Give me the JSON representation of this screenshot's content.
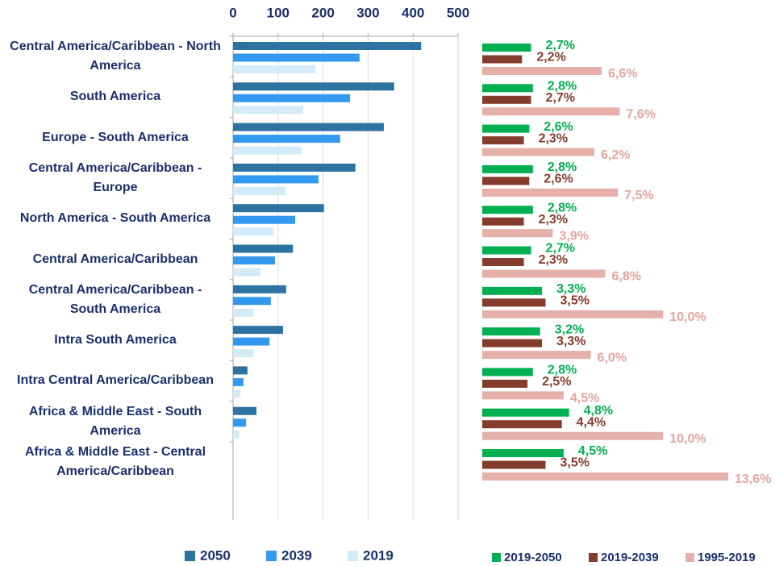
{
  "chart_data": [
    {
      "type": "bar",
      "orientation": "horizontal",
      "categories": [
        "Central America/Caribbean - North America",
        "South America",
        "Europe - South America",
        "Central America/Caribbean - Europe",
        "North America - South America",
        "Central America/Caribbean",
        "Central America/Caribbean - South America",
        "Intra South America",
        "Intra Central America/Caribbean",
        "Africa & Middle East - South America",
        "Africa & Middle East - Central America/Caribbean"
      ],
      "series": [
        {
          "name": "2050",
          "color": "#2d73a1",
          "values": [
            418,
            358,
            335,
            272,
            202,
            133,
            118,
            111,
            32,
            52,
            null
          ]
        },
        {
          "name": "2039",
          "color": "#3399ee",
          "values": [
            281,
            260,
            238,
            190,
            138,
            93,
            84,
            81,
            23,
            29,
            null
          ]
        },
        {
          "name": "2019",
          "color": "#d3eaf8",
          "values": [
            183,
            156,
            152,
            116,
            90,
            61,
            45,
            45,
            16,
            14,
            null
          ]
        }
      ],
      "xlim": [
        0,
        500
      ],
      "xticks": [
        0,
        100,
        200,
        300,
        400,
        500
      ],
      "grid": true,
      "legend": "bottom"
    },
    {
      "type": "bar",
      "orientation": "horizontal",
      "series": [
        {
          "name": "2019-2050",
          "color": "#00b050",
          "values": [
            2.7,
            2.8,
            2.6,
            2.8,
            2.8,
            2.7,
            3.3,
            3.2,
            2.8,
            4.8,
            4.5
          ],
          "value_labels": [
            "2,7%",
            "2,8%",
            "2,6%",
            "2,8%",
            "2,8%",
            "2,7%",
            "3,3%",
            "3,2%",
            "2,8%",
            "4,8%",
            "4,5%"
          ]
        },
        {
          "name": "2019-2039",
          "color": "#843c2c",
          "values": [
            2.2,
            2.7,
            2.3,
            2.6,
            2.3,
            2.3,
            3.5,
            3.3,
            2.5,
            4.4,
            3.5
          ],
          "value_labels": [
            "2,2%",
            "2,7%",
            "2,3%",
            "2,6%",
            "2,3%",
            "2,3%",
            "3,5%",
            "3,3%",
            "2,5%",
            "4,4%",
            "3,5%"
          ]
        },
        {
          "name": "1995-2019",
          "color": "#e6b0aa",
          "values": [
            6.6,
            7.6,
            6.2,
            7.5,
            3.9,
            6.8,
            10.0,
            6.0,
            4.5,
            10.0,
            13.6
          ],
          "value_labels": [
            "6,6%",
            "7,6%",
            "6,2%",
            "7,5%",
            "3,9%",
            "6,8%",
            "10,0%",
            "6,0%",
            "4,5%",
            "10,0%",
            "13,6%"
          ]
        }
      ],
      "legend": "bottom-right"
    }
  ]
}
